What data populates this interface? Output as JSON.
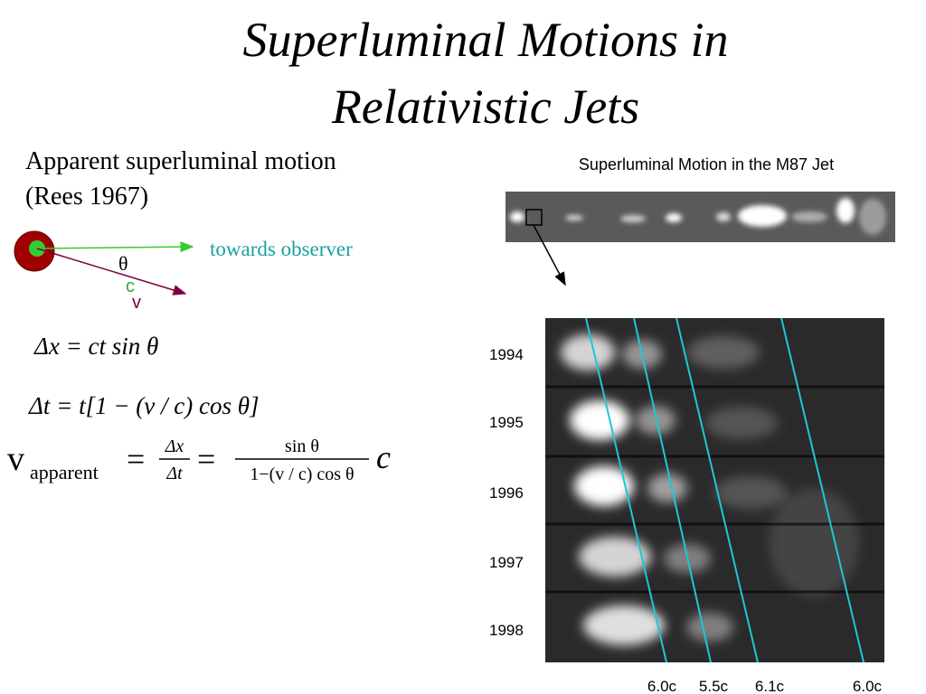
{
  "title": {
    "lines": [
      "Superluminal Motions in",
      "Relativistic Jets"
    ]
  },
  "intro": {
    "lines": [
      "Apparent superluminal motion",
      "(Rees 1967)"
    ]
  },
  "diagram": {
    "observer_label": "towards observer",
    "angle_label": "θ",
    "c_label": "c",
    "v_label": "v"
  },
  "equations": {
    "displacement": "Δx = ct sin θ",
    "time": "Δt = t[1 − (v / c) cos θ]",
    "velocity": {
      "symbol": "v",
      "subscript": "apparent",
      "equals_1": "=",
      "numerator_1": "Δx",
      "denominator_1": "Δt",
      "equals_2": "=",
      "numerator_2": "sin θ",
      "denominator_2": "1−(v / c) cos θ",
      "factor": "c"
    }
  },
  "figure": {
    "title": "Superluminal Motion in the M87 Jet",
    "years": [
      "1994",
      "1995",
      "1996",
      "1997",
      "1998"
    ],
    "speeds": [
      "6.0c",
      "5.5c",
      "6.1c",
      "6.0c"
    ]
  }
}
